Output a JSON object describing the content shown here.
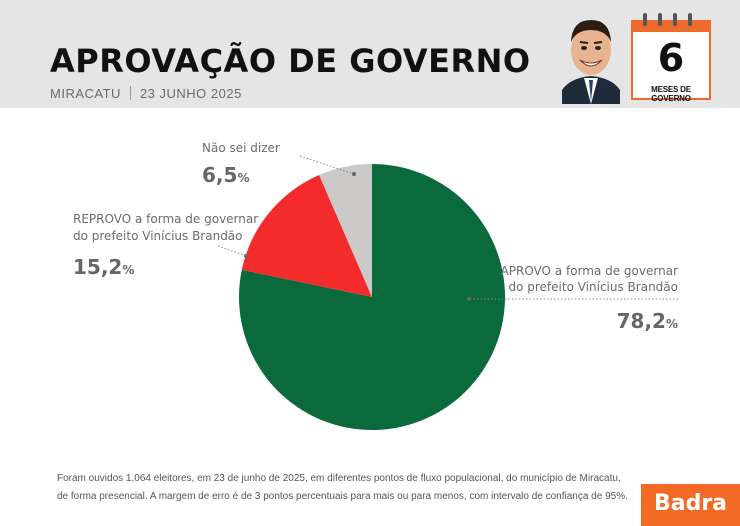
{
  "header": {
    "title": "APROVAÇÃO DE GOVERNO",
    "city": "MIRACATU",
    "date": "23 JUNHO 2025",
    "calendar_number": "6",
    "calendar_label": "MESES DE GOVERNO"
  },
  "chart_data": {
    "type": "pie",
    "title": "APROVAÇÃO DE GOVERNO",
    "slices": [
      {
        "label_line1": "APROVO a forma de governar",
        "label_line2": "do prefeito Vinícius Brandão",
        "value": 78.2,
        "display": "78,2",
        "color": "#0a6a3c"
      },
      {
        "label_line1": "REPROVO a forma de governar",
        "label_line2": "do prefeito Vinícius Brandão",
        "value": 15.2,
        "display": "15,2",
        "color": "#f32b2b"
      },
      {
        "label_line1": "Não sei dizer",
        "label_line2": "",
        "value": 6.5,
        "display": "6,5",
        "color": "#cbcac8"
      }
    ],
    "unit": "%"
  },
  "footer": {
    "line1": "Foram ouvidos 1.064 eleitores, em 23 de junho de 2025, em diferentes pontos de fluxo populacional, do município de Miracatu,",
    "line2": "de forma presencial. A margem de erro é de 3 pontos percentuais para mais ou para menos, com intervalo de confiança de 95%."
  },
  "brand": "Badra"
}
